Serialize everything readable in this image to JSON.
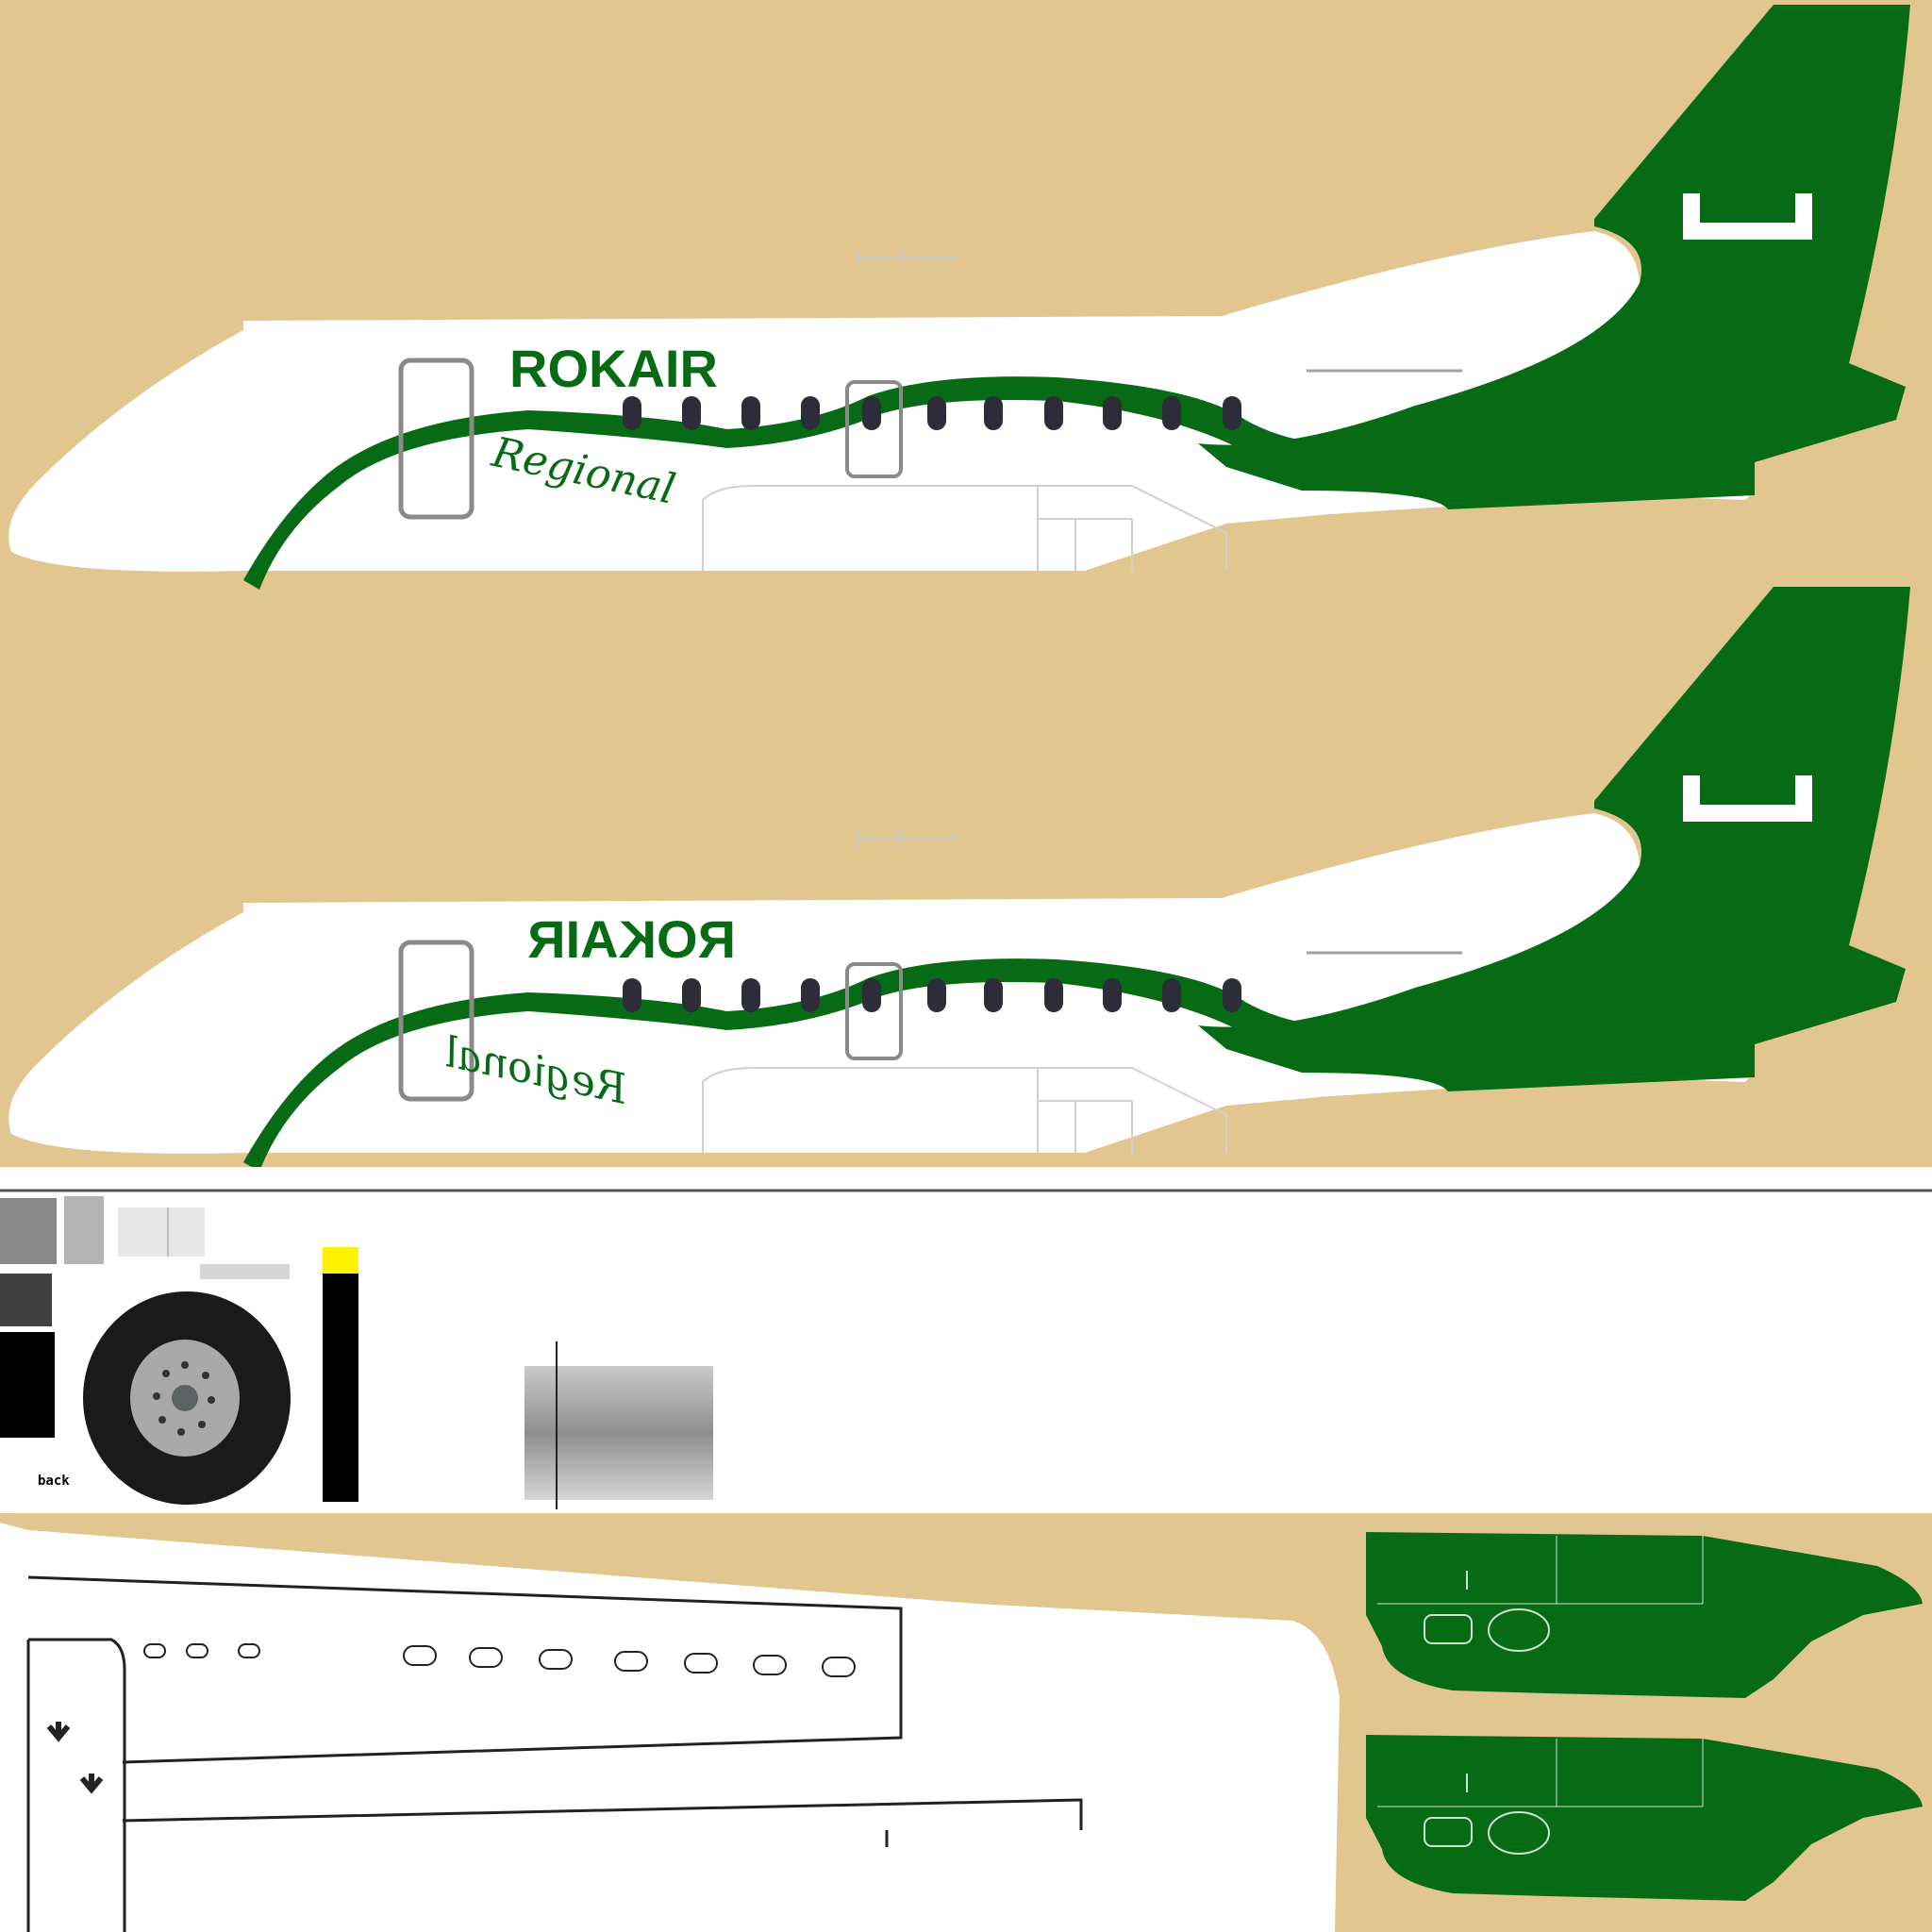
{
  "texture": {
    "airline_name": "ROKAIR",
    "script_word": "Regional",
    "tail_logo": "L",
    "back_label": "back",
    "colors": {
      "background": "#e2c68f",
      "livery_green": "#076b15",
      "fuselage_white": "#ffffff",
      "window_color": "#2d2d3a"
    }
  },
  "parts": [
    {
      "id": "fuselage-left",
      "text_mirrored": false
    },
    {
      "id": "fuselage-right",
      "text_mirrored": true
    },
    {
      "id": "misc-parts-strip"
    },
    {
      "id": "top-surface"
    },
    {
      "id": "engine-nacelles"
    }
  ]
}
